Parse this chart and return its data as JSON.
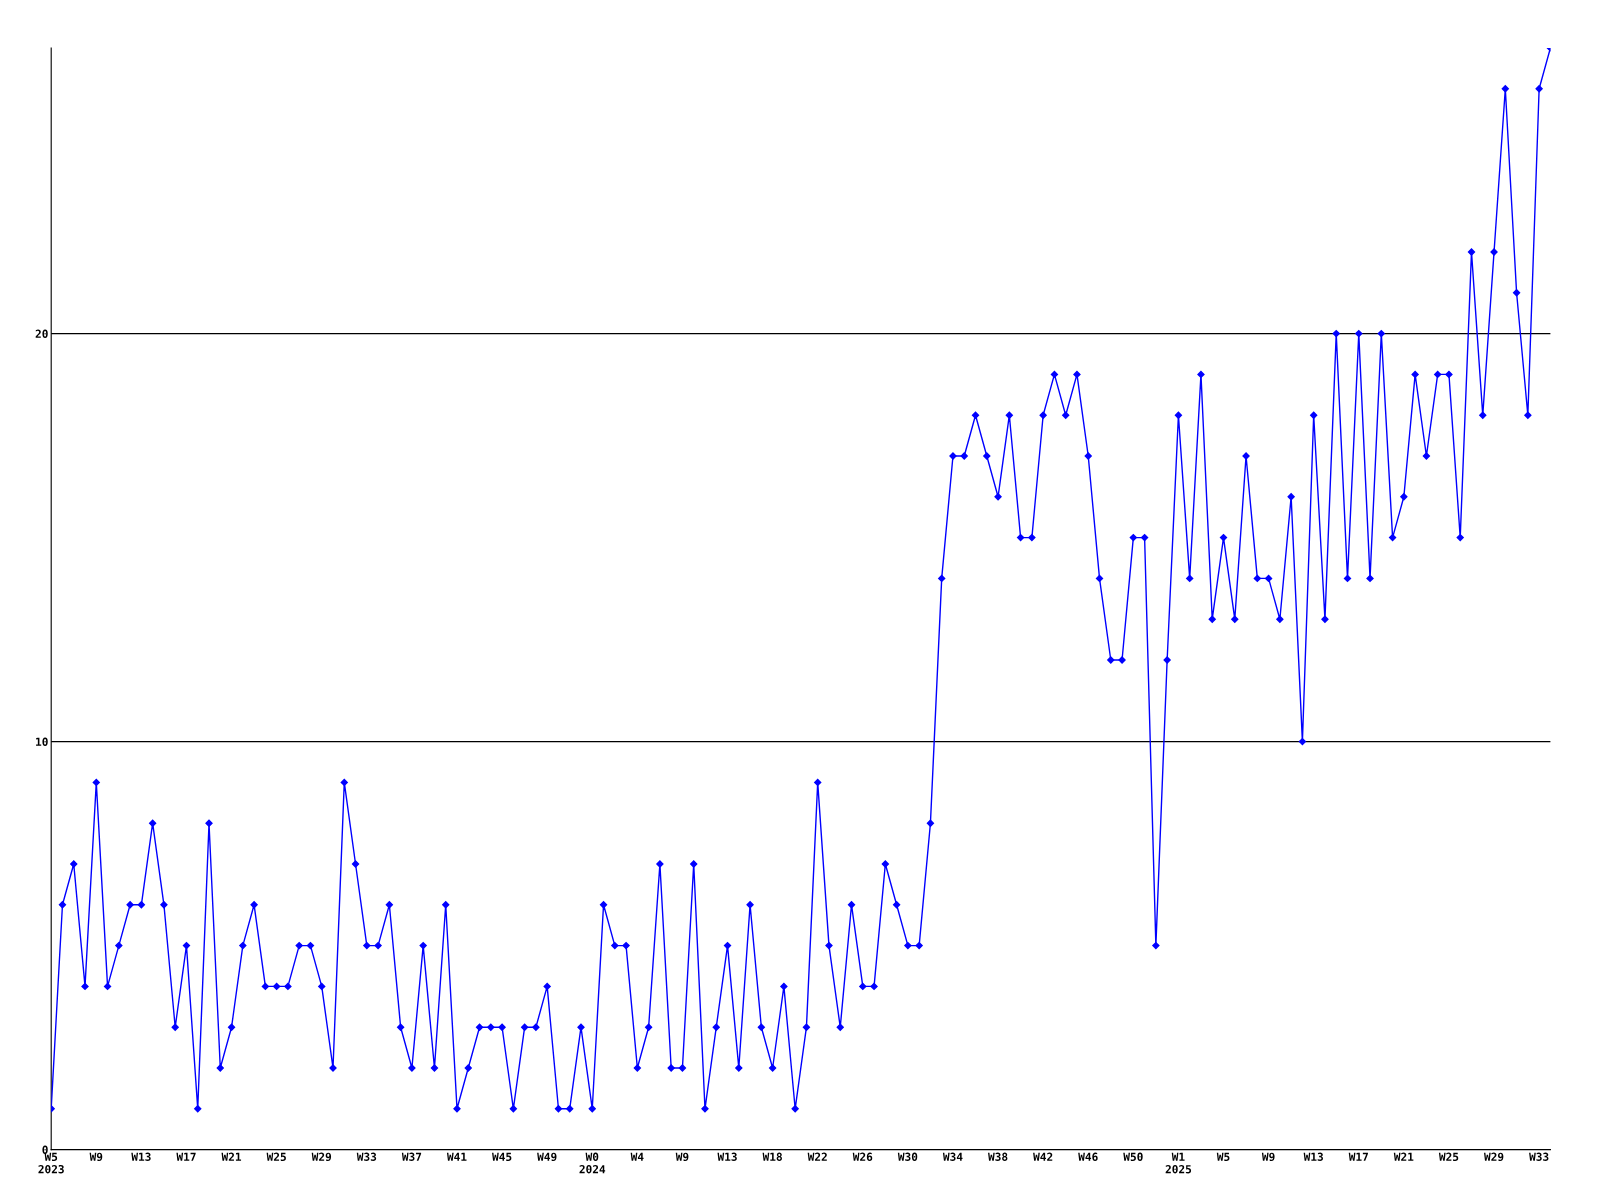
{
  "chart_data": {
    "type": "line",
    "categories": [
      "W5\n2023",
      null,
      null,
      null,
      "W9",
      null,
      null,
      null,
      "W13",
      null,
      null,
      null,
      "W17",
      null,
      null,
      null,
      "W21",
      null,
      null,
      null,
      "W25",
      null,
      null,
      null,
      "W29",
      null,
      null,
      null,
      "W33",
      null,
      null,
      null,
      "W37",
      null,
      null,
      null,
      "W41",
      null,
      null,
      null,
      "W45",
      null,
      null,
      null,
      "W49",
      null,
      null,
      null,
      "W0\n2024",
      null,
      null,
      null,
      "W4",
      null,
      null,
      null,
      "W9",
      null,
      null,
      null,
      "W13",
      null,
      null,
      null,
      "W18",
      null,
      null,
      null,
      "W22",
      null,
      null,
      null,
      "W26",
      null,
      null,
      null,
      "W30",
      null,
      null,
      null,
      "W34",
      null,
      null,
      null,
      "W38",
      null,
      null,
      null,
      "W42",
      null,
      null,
      null,
      "W46",
      null,
      null,
      null,
      "W50",
      null,
      null,
      null,
      "W1\n2025",
      null,
      null,
      null,
      "W5",
      null,
      null,
      null,
      "W9",
      null,
      null,
      null,
      "W13",
      null,
      null,
      null,
      "W17",
      null,
      null,
      null,
      "W21",
      null,
      null,
      null,
      "W25",
      null,
      null,
      null,
      "W29",
      null,
      null,
      null,
      "W33",
      null
    ],
    "series": [
      {
        "color": "#0000ff",
        "values": [
          1,
          6,
          7,
          4,
          9,
          4,
          5,
          6,
          6,
          8,
          6,
          3,
          5,
          1,
          8,
          2,
          3,
          5,
          6,
          4,
          4,
          4,
          5,
          5,
          4,
          2,
          9,
          7,
          5,
          5,
          6,
          3,
          2,
          5,
          2,
          6,
          1,
          2,
          3,
          3,
          3,
          1,
          3,
          3,
          4,
          1,
          1,
          3,
          1,
          6,
          5,
          5,
          2,
          3,
          7,
          2,
          2,
          7,
          1,
          3,
          5,
          2,
          6,
          3,
          2,
          4,
          1,
          3,
          9,
          5,
          3,
          6,
          4,
          4,
          7,
          6,
          5,
          5,
          8,
          14,
          17,
          17,
          18,
          17,
          16,
          18,
          15,
          15,
          18,
          19,
          18,
          19,
          17,
          14,
          12,
          12,
          15,
          15,
          5,
          12,
          18,
          14,
          19,
          13,
          15,
          13,
          17,
          14,
          14,
          13,
          16,
          10,
          18,
          13,
          20,
          14,
          20,
          14,
          20,
          15,
          16,
          19,
          17,
          19,
          19,
          15,
          22,
          18,
          22,
          26,
          21,
          18,
          26,
          27
        ]
      }
    ],
    "ylim": [
      0,
      27
    ],
    "yticks": [
      0,
      10,
      20
    ],
    "grid": "y",
    "marker": "diamond",
    "line_style": "solid"
  }
}
